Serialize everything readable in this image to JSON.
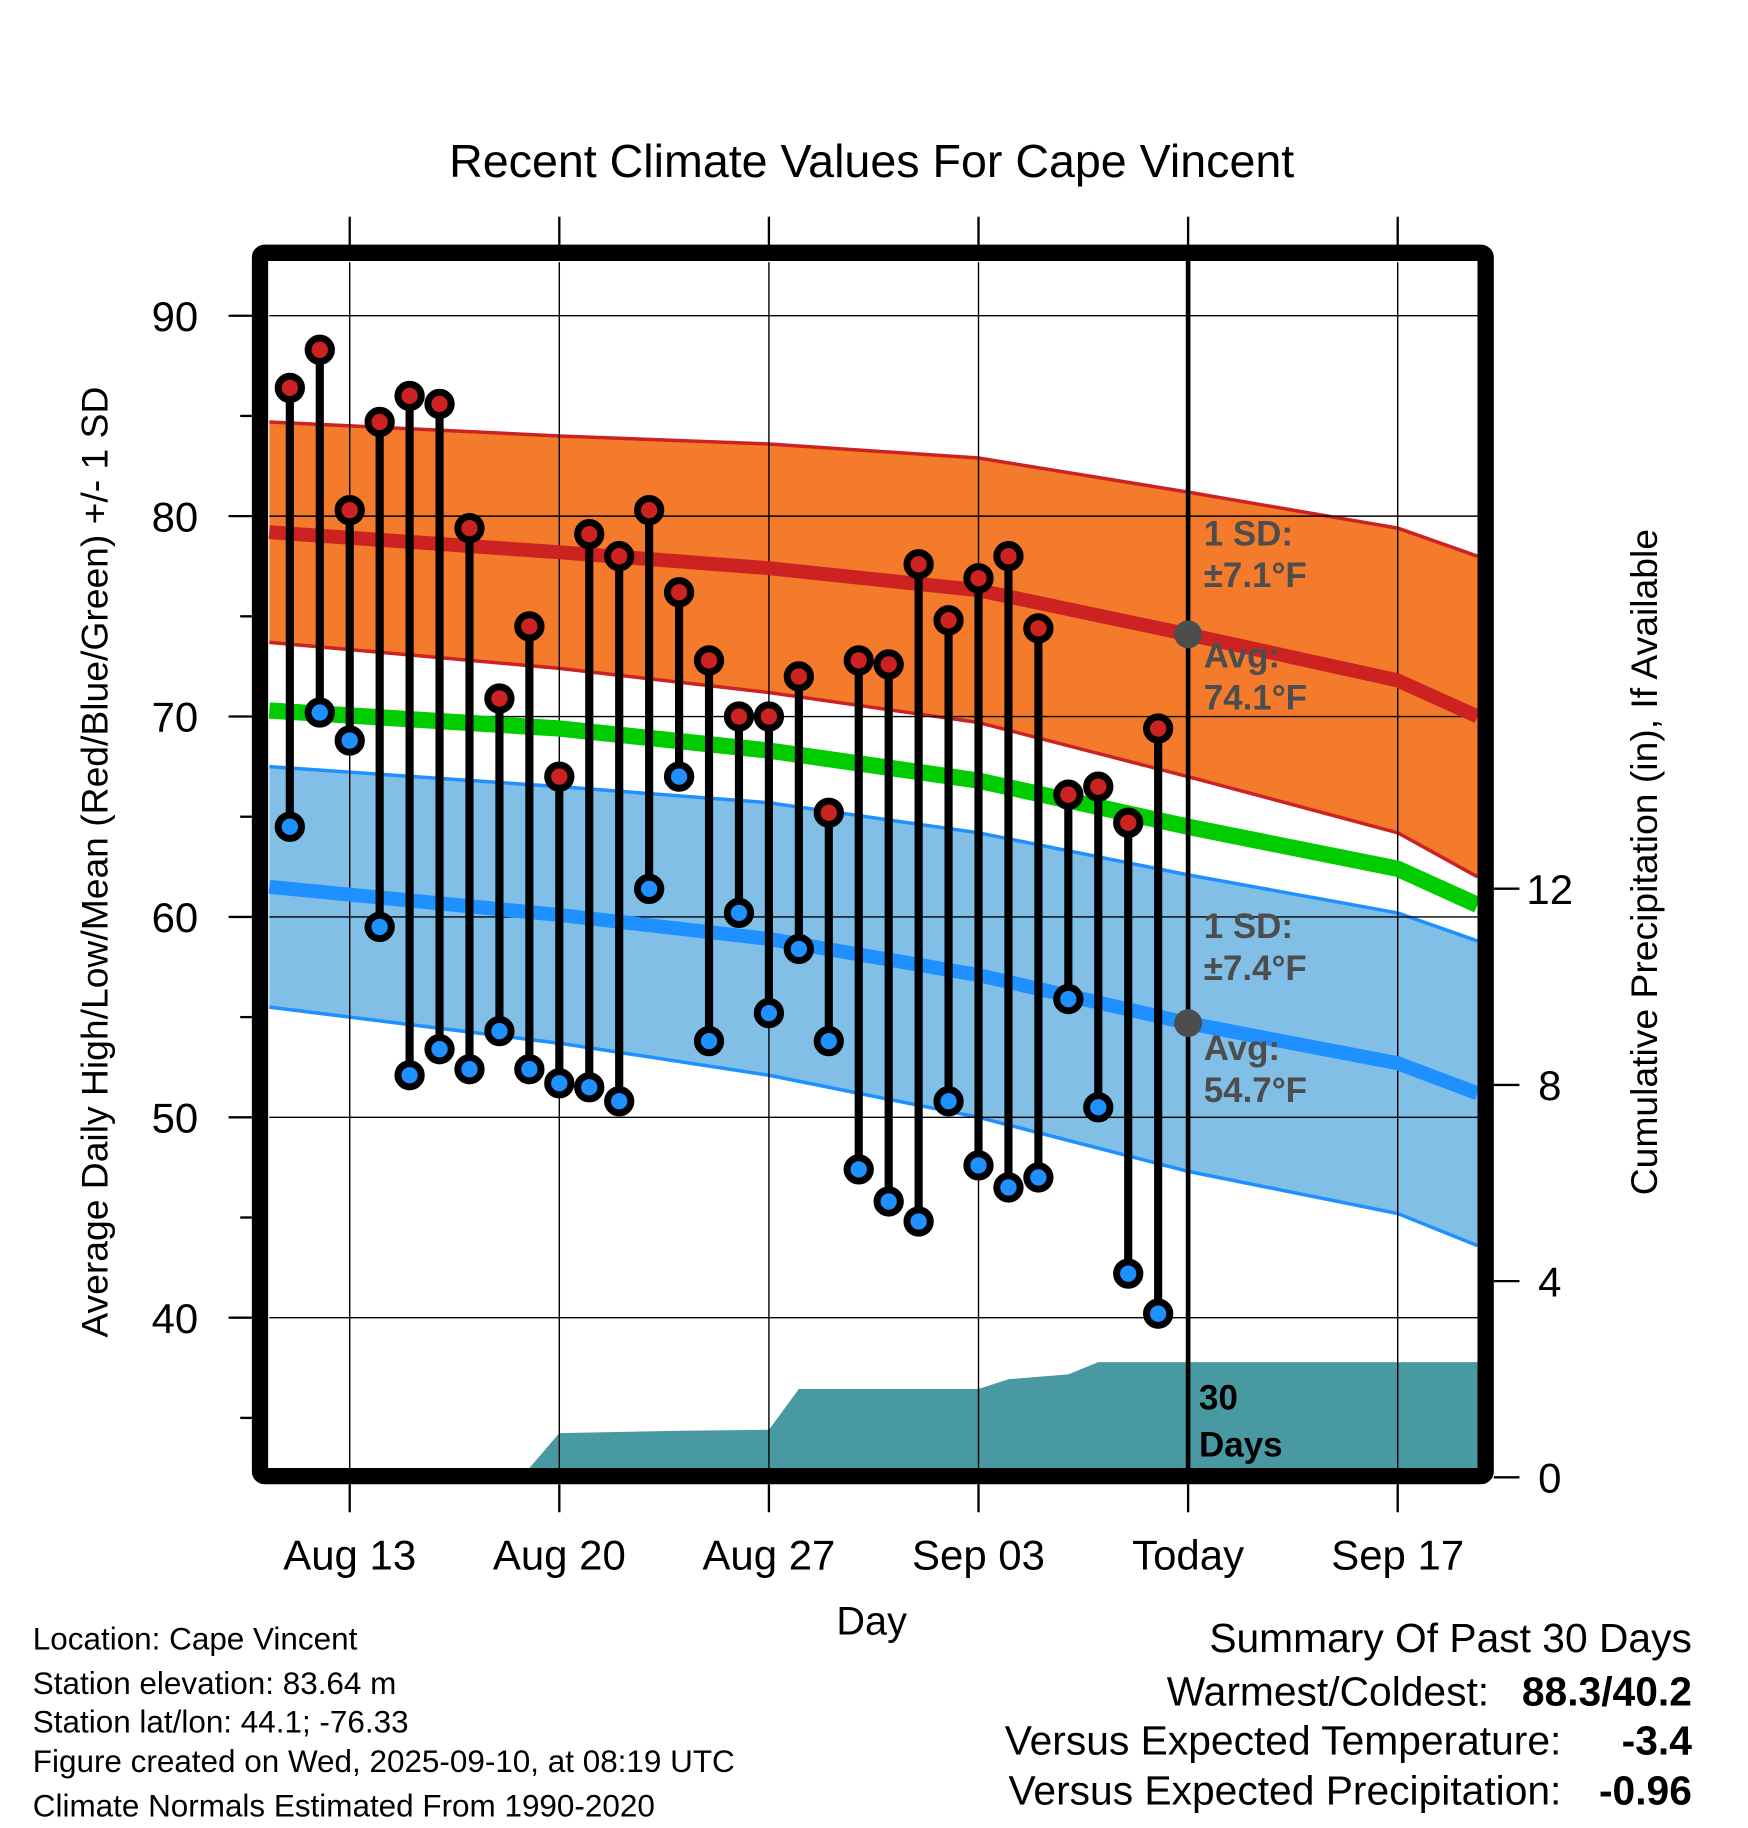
{
  "chart_data": {
    "type": "line",
    "title": "Recent Climate Values For Cape Vincent",
    "xlabel": "Day",
    "ylabel": "Average Daily High/Low/Mean (Red/Blue/Green) +/- 1 SD",
    "ylabel_right": "Cumulative Precipitation (in), If Available",
    "ylim": [
      32.6,
      92.7
    ],
    "ylim_right": [
      0,
      14
    ],
    "xlim": [
      "Aug 10",
      "Sep 21"
    ],
    "grid": true,
    "y_ticks": [
      "40",
      "50",
      "60",
      "70",
      "80",
      "90"
    ],
    "y_ticks_right": [
      "0",
      "4",
      "8",
      "12"
    ],
    "x_ticks": [
      {
        "date": "Aug 13",
        "label": "Aug 13"
      },
      {
        "date": "Aug 20",
        "label": "Aug 20"
      },
      {
        "date": "Aug 27",
        "label": "Aug 27"
      },
      {
        "date": "Sep 03",
        "label": "Sep 03"
      },
      {
        "date": "Sep 10",
        "label": "Today"
      },
      {
        "date": "Sep 17",
        "label": "Sep 17"
      }
    ],
    "today": "Sep 10",
    "dates": [
      "Aug 11",
      "Aug 12",
      "Aug 13",
      "Aug 14",
      "Aug 15",
      "Aug 16",
      "Aug 17",
      "Aug 18",
      "Aug 19",
      "Aug 20",
      "Aug 21",
      "Aug 22",
      "Aug 23",
      "Aug 24",
      "Aug 25",
      "Aug 26",
      "Aug 27",
      "Aug 28",
      "Aug 29",
      "Aug 30",
      "Aug 31",
      "Sep 01",
      "Sep 02",
      "Sep 03",
      "Sep 04",
      "Sep 05",
      "Sep 06",
      "Sep 07",
      "Sep 08",
      "Sep 09"
    ],
    "series": [
      {
        "name": "Daily High",
        "color": "#cc2222",
        "values": [
          86.4,
          88.3,
          80.3,
          84.7,
          86.0,
          85.6,
          79.4,
          70.9,
          74.5,
          67.0,
          79.1,
          78.0,
          80.3,
          76.2,
          72.8,
          70.0,
          70.0,
          72.0,
          65.2,
          72.8,
          72.6,
          77.6,
          74.8,
          76.9,
          78.0,
          74.4,
          66.1,
          66.5,
          64.7,
          69.4
        ]
      },
      {
        "name": "Daily Low",
        "color": "#1e90ff",
        "values": [
          64.5,
          70.2,
          68.8,
          59.5,
          52.1,
          53.4,
          52.4,
          54.3,
          52.4,
          51.7,
          51.5,
          50.8,
          61.4,
          67.0,
          53.8,
          60.2,
          55.2,
          58.4,
          53.8,
          47.4,
          45.8,
          44.8,
          50.8,
          47.6,
          46.5,
          47.0,
          55.9,
          50.5,
          42.2,
          40.2
        ]
      }
    ],
    "normals": {
      "dates": [
        "Aug 10",
        "Aug 20",
        "Aug 27",
        "Sep 03",
        "Sep 10",
        "Sep 17",
        "Sep 21"
      ],
      "avg_high": [
        79.2,
        78.2,
        77.4,
        76.3,
        74.1,
        71.8,
        70.0
      ],
      "sd_high": [
        5.5,
        5.8,
        6.2,
        6.6,
        7.1,
        7.6,
        8.0
      ],
      "avg_low": [
        61.5,
        60.1,
        58.9,
        57.1,
        54.7,
        52.7,
        51.2
      ],
      "sd_low": [
        6.0,
        6.4,
        6.8,
        7.1,
        7.4,
        7.5,
        7.6
      ],
      "avg_mean": [
        70.3,
        69.4,
        68.3,
        66.8,
        64.5,
        62.4,
        60.6
      ],
      "colors": {
        "high_band": "#f47a2c",
        "high_line": "#cc2222",
        "low_band": "#82bfe6",
        "low_line": "#1e90ff",
        "mean_line": "#00cc00"
      }
    },
    "precipitation": {
      "color": "#4899a1",
      "dates": [
        "Aug 10",
        "Aug 19",
        "Aug 20",
        "Aug 24",
        "Aug 27",
        "Aug 28",
        "Sep 03",
        "Sep 04",
        "Sep 06",
        "Sep 07",
        "Sep 21"
      ],
      "values": [
        0,
        0,
        0.9,
        0.95,
        0.97,
        1.8,
        1.8,
        2.0,
        2.1,
        2.35,
        2.35
      ]
    },
    "annotations": {
      "high_sd_1": "1 SD:",
      "high_sd_2": "±7.1°F",
      "high_avg_1": "Avg:",
      "high_avg_2": "74.1°F",
      "low_sd_1": "1 SD:",
      "low_sd_2": "±7.4°F",
      "low_avg_1": "Avg:",
      "low_avg_2": "54.7°F",
      "days_1": "30",
      "days_2": "Days"
    }
  },
  "footer": {
    "location": "Location: Cape Vincent",
    "elevation": "Station elevation: 83.64 m",
    "latlon": "Station lat/lon: 44.1; -76.33",
    "created": "Figure created on Wed, 2025-09-10, at 08:19 UTC",
    "normals": "Climate Normals Estimated From 1990-2020"
  },
  "summary": {
    "title": "Summary Of Past 30 Days",
    "warmest_coldest_label": "Warmest/Coldest:",
    "warmest_coldest_value": "88.3/40.2",
    "temp_label": "Versus Expected Temperature:",
    "temp_value": "-3.4",
    "temp_color": "#1e90ff",
    "precip_label": "Versus Expected Precipitation:",
    "precip_value": "-0.96",
    "precip_color": "#a0522d"
  }
}
